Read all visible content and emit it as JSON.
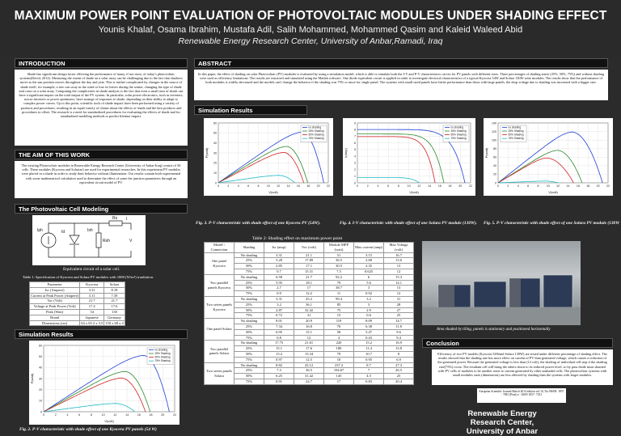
{
  "header": {
    "title": "MAXIMUM POWER POINT EVALUATION OF PHOTOVOLTAIC MODULES UNDER SHADING EFFECT",
    "authors": "Younis Khalaf, Osama Ibrahim, Mustafa Adil, Salih Mohammed, Mohammed Qasim and Kaleid Waleed Abid",
    "affiliation": "Renewable Energy Research Center, University of Anbar,Ramadi, Iraq"
  },
  "sections": {
    "introduction": "INTRODUCTION",
    "aim": "THE AIM OF THIS WORK",
    "pv_model": "The Photovoltaic Cell Modeling",
    "sim_left": "Simulation Results",
    "abstract": "ABSTRACT",
    "sim_right": "Simulation Results",
    "conclusion": "Conclusion"
  },
  "introduction_text": "Shade has significant design factor effecting the performance of many, if not most, of today's photovoltaic systems(David, 2012). Measuring the extent of shade on a solar array can be challenging due to the fact that shadows move as the sun position moves throughout the day and year. This is further complicated by changes in the source of shade itself, for example, a tree can sway in the wind or lose its leaves during the winter, changing the type of shade and costs on a solar array. Computing the complexities in shade analysis is the fact that even a small area of shade can have a significant impact on the total output of the PV system. In particular, solar power electronics, such as inverters, micro-inverters or power optimizers, have arrange of responses to shade, depending on their ability to adapt to complex power curves. Up to this point, scientific tools of shade impact have been performed using a variety of products and procedures, resulting in an equal variety of claims about the effects of shade and the best products and procedures to offset. The research is a need for standardized procedures for evaluating the effects of shade and for standardized modeling methods to predict lifetime impact.",
  "aim_text": "The existing Photovoltaic modules in Renewable Energy Research Center (University of Anbar-Iraq) consist of 36 cells. These modules (Kyocera and Solarize) are used for experimental researches. In this experiment PV modules were placed in a shade in order to study their behavior without illumination. Our results contain both experimental with some mathematical calculation used to determine the effect of some the junction parameters through an equivalent circuit model of PV.",
  "abstract_text": "In this paper, the effect of shading on solar Photovoltaic (PV) modules is evaluated by using a simulation model, which is able to simulate both the I-V and P-V characteristics curves for PV panels with different sizes. Three percentages of shading states (25%, 50%, 75%) and without shading were used as efficiency limitations. The results are extracted and simulated using the Matlab software. One diode equivalent circuit is applied in order to investigate electrical characteristics of a typical Kyocera 54W and Solara 130W solar modules. The results show that the performance of both modules is widely decreased and the models can't change the behavior if the shading was 75% or more for single panel. The systems with small sized panels have better performance than those with large panels, the drop voltage due to shading was increased with a bigger size.",
  "conclusion_text": "Efficiency of two PV models (Kyocera 54Wand Solara 130W) are tested under different percentage of shading effect. The results showed that the shading rate has more effect on current of PV than generated voltage, which causes a reduction of the generated power. Because the generated voltage is less than (12 volt), the shading of individual cell step if the shading rate(75%) occur. The resultant cell will bring the others down to its reduced power level, so by pass diode must shunted with PV cells of modules to be another route to current generated by other unshaded cells. The photovoltaic systems with small modules sizes (dimensions) are less affected by shading than the systems with larger modules.",
  "journal_text": "European Scientific Journal March 2014 edition vol.10, No.9ISSN: 1857 - 7881 (Print) e - ISSN 1857- 7431",
  "circuit": {
    "caption": "Equivalent circuit of a solar cell.",
    "labels": [
      "Iph",
      "Id",
      "Ish",
      "Rsh",
      "Rs",
      "I",
      "V"
    ]
  },
  "table1": {
    "caption": "Table 1: Specification of Kyocera and Solara PV modules with 1000 (W/m²) irradiation.",
    "headers": [
      "Parameter",
      "Kyocera",
      "Solara"
    ],
    "rows": [
      [
        "Isc (Ampere)",
        "3.31",
        "8.18"
      ],
      [
        "Current at Peak Power (Ampere)",
        "3.11",
        "7.39"
      ],
      [
        "Voc (Volt)",
        "21.7",
        "21.7"
      ],
      [
        "Voltage at Peak Power (Volt)",
        "17.4",
        "17.6"
      ],
      [
        "Peak (Watt)",
        "54",
        "130"
      ],
      [
        "Brand",
        "Japanese",
        "Germany"
      ],
      [
        "Dimensions (cm)",
        "64 x 65.2 x 3.5",
        "150 x 68 x 4"
      ]
    ]
  },
  "table2": {
    "caption": "Table 2: Shading effect on maximum power point",
    "headers": [
      "Model \\ Connection",
      "Shading",
      "Isc (amp)",
      "Voc (volt)",
      "Module MPP (watt)",
      "Max current (amp)",
      "Max Voltage (volt)"
    ],
    "groups": [
      {
        "name": "One panel Kyocera",
        "rows": [
          [
            "No shading",
            "3.31",
            "21.1",
            "51",
            "3.15",
            "16.7"
          ],
          [
            "25%",
            "3.28",
            "17.89",
            "36.5",
            "2.68",
            "13.6"
          ],
          [
            "50%",
            "2.85",
            "17.1",
            "30.5",
            "2.35",
            "13"
          ],
          [
            "75%",
            "0.7",
            "15.31",
            "7.5",
            "0.625",
            "12"
          ]
        ]
      },
      {
        "name": "Two parallel panels Kyocera",
        "rows": [
          [
            "No shading",
            "6.58",
            "21.7",
            "92.2",
            "6",
            "15.3"
          ],
          [
            "25%",
            "5.95",
            "18.1",
            "79",
            "5.6",
            "14.1"
          ],
          [
            "50%",
            "2.7",
            "17",
            "38.7",
            "3",
            "13"
          ],
          [
            "75%",
            "0.9",
            "12.2",
            "11",
            "0.92",
            "12"
          ]
        ]
      },
      {
        "name": "Two series panels Kyocera",
        "rows": [
          [
            "No shading",
            "3.31",
            "43.2",
            "99.4",
            "3.2",
            "31"
          ],
          [
            "25%",
            "3.2",
            "36.1",
            "85",
            "3",
            "28"
          ],
          [
            "50%",
            "2.87",
            "32.42",
            "75",
            "2.9",
            "27"
          ],
          [
            "75%",
            "0.72",
            "31",
            "15",
            "0.6",
            "25"
          ]
        ]
      },
      {
        "name": "One panel Solara",
        "rows": [
          [
            "No shading",
            "8.01",
            "20.9",
            "119",
            "8.09",
            "14.7"
          ],
          [
            "25%",
            "7.34",
            "16.8",
            "76",
            "6.38",
            "11.8"
          ],
          [
            "50%",
            "6.95",
            "15.1",
            "58",
            "5.47",
            "9.6"
          ],
          [
            "75%",
            "0.8",
            "12",
            "4",
            "0.43",
            "9.4"
          ]
        ]
      },
      {
        "name": "Two parallel panels Solara",
        "rows": [
          [
            "No shading",
            "17.75",
            "21.61",
            "220",
            "15.2",
            "16.9"
          ],
          [
            "25%",
            "15.1",
            "17.6",
            "180",
            "11.4",
            "15.8"
          ],
          [
            "50%",
            "13.2",
            "13.34",
            "79",
            "10.7",
            "8"
          ],
          [
            "75%",
            "0.97",
            "12.5",
            "10",
            "0.95",
            "6.9"
          ]
        ]
      },
      {
        "name": "Two series panels Solara",
        "rows": [
          [
            "No shading",
            "8.82",
            "43.12",
            "237.2",
            "8.7",
            "27.3"
          ],
          [
            "25%",
            "7.3",
            "36.5",
            "194.67",
            "7",
            "26.5"
          ],
          [
            "50%",
            "6.25",
            "31.42",
            "145",
            "4.5",
            "25"
          ],
          [
            "75%",
            "0.91",
            "24.7",
            "17",
            "0.83",
            "20.4"
          ]
        ]
      }
    ]
  },
  "photo_caption": "Area shaded by tiling, panels is stationary and positioned horizontally",
  "figures": {
    "fig2_caption": "Fig. 2. P-V characteristic with shade effect of one Kyocera PV panels (54 W)",
    "fig3_caption": "Fig. 3. P-V characteristic with shade effect of one Kyocera PV (54W).",
    "fig4_caption": "Fig. 4. I-V characteristic with shade effect of one Solara PV module (130W).",
    "fig5_caption": "Fig. 5. P-V characteristic with shade effect of one Solara PV module (130W)."
  },
  "logo": {
    "line1": "Renewable Energy",
    "line2": "Research Center,",
    "line3": "University of Anbar"
  },
  "chart_data": [
    {
      "type": "line",
      "id": "fig3",
      "xlabel": "V(volt)",
      "ylabel": "P(watt)",
      "xlim": [
        0,
        22
      ],
      "ylim": [
        0,
        60
      ],
      "xticks": [
        0,
        2,
        4,
        6,
        8,
        10,
        12,
        14,
        16,
        18,
        20,
        22
      ],
      "yticks": [
        0,
        10,
        20,
        30,
        40,
        50,
        60
      ],
      "legend": "top-right",
      "series": [
        {
          "name": "no shading",
          "color": "#1f3fd6",
          "voc": 21.1,
          "vmp": 16.7,
          "pmp": 51
        },
        {
          "name": "25% Shading",
          "color": "#2a8a2a",
          "voc": 17.89,
          "vmp": 13.6,
          "pmp": 36.5
        },
        {
          "name": "50% Shading",
          "color": "#d42020",
          "voc": 17.1,
          "vmp": 13,
          "pmp": 30.5
        },
        {
          "name": "75% Shading",
          "color": "#1ab8c4",
          "voc": 15.31,
          "vmp": 12,
          "pmp": 7.5
        }
      ]
    },
    {
      "type": "line",
      "id": "fig4",
      "xlabel": "V(volt)",
      "ylabel": "I(amp)",
      "xlim": [
        0,
        22
      ],
      "ylim": [
        0,
        9
      ],
      "xticks": [
        0,
        2,
        4,
        6,
        8,
        10,
        12,
        14,
        16,
        18,
        20,
        22
      ],
      "yticks": [
        0,
        1,
        2,
        3,
        4,
        5,
        6,
        7,
        8,
        9
      ],
      "legend": "top-right",
      "series": [
        {
          "name": "no shading",
          "color": "#1f3fd6",
          "isc": 8.01,
          "voc": 20.9
        },
        {
          "name": "25% Shading",
          "color": "#2a8a2a",
          "isc": 7.34,
          "voc": 16.8
        },
        {
          "name": "50% Shading",
          "color": "#d42020",
          "isc": 6.95,
          "voc": 15.1
        },
        {
          "name": "75% Shading",
          "color": "#1ab8c4",
          "isc": 0.8,
          "voc": 12
        }
      ]
    },
    {
      "type": "line",
      "id": "fig5",
      "xlabel": "V(volt)",
      "ylabel": "P(watt)",
      "xlim": [
        0,
        22
      ],
      "ylim": [
        0,
        140
      ],
      "xticks": [
        0,
        2,
        4,
        6,
        8,
        10,
        12,
        14,
        16,
        18,
        20,
        22
      ],
      "yticks": [
        0,
        20,
        40,
        60,
        80,
        100,
        120,
        140
      ],
      "legend": "top-left",
      "series": [
        {
          "name": "no shading",
          "color": "#1f3fd6",
          "voc": 20.9,
          "vmp": 14.7,
          "pmp": 119
        },
        {
          "name": "25% Shading",
          "color": "#2a8a2a",
          "voc": 16.8,
          "vmp": 11.8,
          "pmp": 76
        },
        {
          "name": "50% Shading",
          "color": "#d42020",
          "voc": 15.1,
          "vmp": 9.6,
          "pmp": 58
        },
        {
          "name": "75% Shading",
          "color": "#1ab8c4",
          "voc": 12,
          "vmp": 9.4,
          "pmp": 4
        }
      ]
    },
    {
      "type": "line",
      "id": "fig2",
      "xlabel": "V(volt)",
      "ylabel": "P(watt)",
      "xlim": [
        0,
        22
      ],
      "ylim": [
        0,
        60
      ],
      "xticks": [
        0,
        2,
        4,
        6,
        8,
        10,
        12,
        14,
        16,
        18,
        20,
        22
      ],
      "yticks": [
        0,
        10,
        20,
        30,
        40,
        50,
        60
      ],
      "legend": "top-right",
      "series": [
        {
          "name": "no shading",
          "color": "#1f3fd6",
          "voc": 21.1,
          "vmp": 16.7,
          "pmp": 51
        },
        {
          "name": "25% Shading",
          "color": "#2a8a2a",
          "voc": 17.89,
          "vmp": 13.6,
          "pmp": 36.5
        },
        {
          "name": "50% Shading",
          "color": "#d42020",
          "voc": 17.1,
          "vmp": 13,
          "pmp": 30.5
        },
        {
          "name": "75% Shading",
          "color": "#1ab8c4",
          "voc": 15.31,
          "vmp": 12,
          "pmp": 7.5
        }
      ]
    }
  ]
}
